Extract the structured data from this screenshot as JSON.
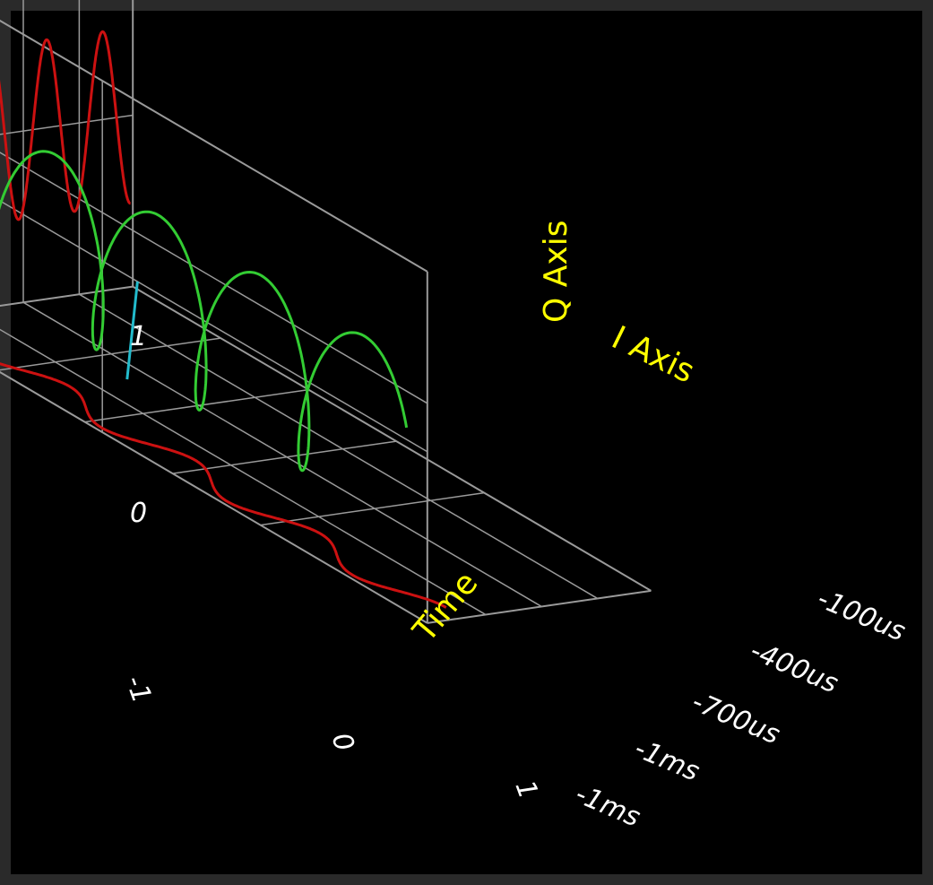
{
  "chart_data": {
    "type": "line",
    "projection": "3d",
    "grid": true,
    "colors": {
      "background": "#000000",
      "frame": "#2a2a2a",
      "grid": "#9a9a9a",
      "helix": "#33cc33",
      "projection": "#cc1111",
      "i_axis_line": "#22bbcc",
      "label": "#ffff00",
      "tick": "#ffffff"
    },
    "axes": {
      "time": {
        "label": "Time",
        "ticks": [
          "-100us",
          "-400us",
          "-700us",
          "-1ms",
          "-1ms"
        ]
      },
      "i": {
        "label": "I Axis",
        "ticks": [
          "-1",
          "0",
          "1"
        ]
      },
      "q": {
        "label": "Q Axis",
        "ticks": [
          "1",
          "0"
        ]
      }
    },
    "series": [
      {
        "kind": "iq-helix",
        "cycles": 3.5,
        "amplitude": 1
      },
      {
        "kind": "time-q-projection",
        "cycles": 3.5,
        "amplitude": 1
      },
      {
        "kind": "time-i-projection",
        "cycles": 3.5,
        "amplitude": 1
      }
    ]
  }
}
